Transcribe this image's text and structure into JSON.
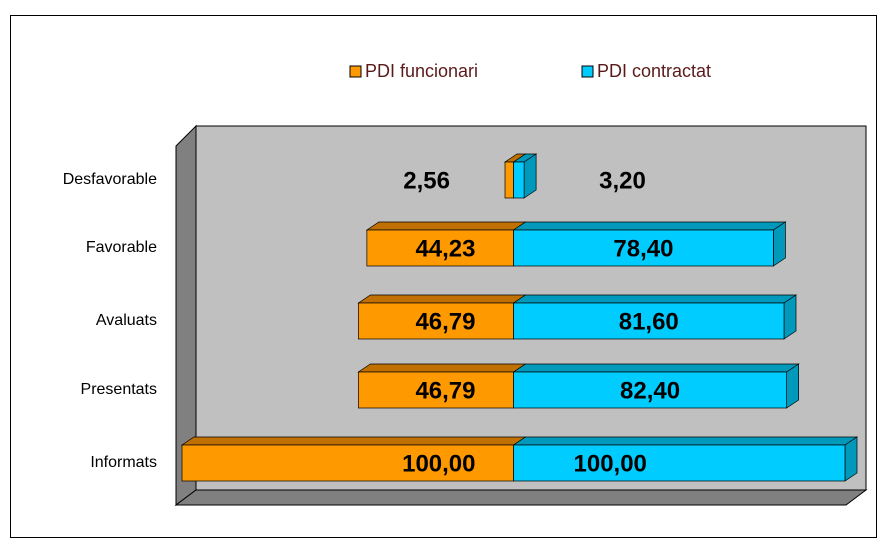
{
  "chart_data": {
    "type": "bar",
    "categories": [
      "Desfavorable",
      "Favorable",
      "Avaluats",
      "Presentats",
      "Informats"
    ],
    "series": [
      {
        "name": "PDI funcionari",
        "color": "#ff9900",
        "values": [
          2.56,
          44.23,
          46.79,
          46.79,
          100
        ],
        "value_labels": [
          "2,56",
          "44,23",
          "46,79",
          "46,79",
          "100,00"
        ]
      },
      {
        "name": "PDI contractat",
        "color": "#00ccff",
        "values": [
          3.2,
          78.4,
          81.6,
          82.4,
          100
        ],
        "value_labels": [
          "3,20",
          "78,40",
          "81,60",
          "82,40",
          "100,00"
        ]
      }
    ],
    "xlim": [
      -100,
      100
    ]
  }
}
